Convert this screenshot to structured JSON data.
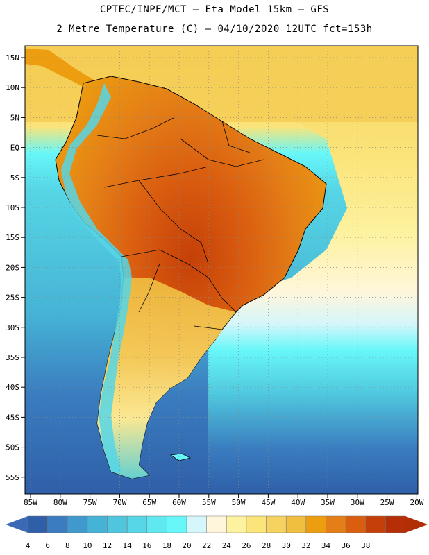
{
  "header": {
    "line1": "CPTEC/INPE/MCT –  Eta Model 15km – GFS",
    "line2": "2 Metre Temperature (C) – 04/10/2020 12UTC fct=153h"
  },
  "latitude_labels": [
    "15N",
    "10N",
    "5N",
    "EQ",
    "5S",
    "10S",
    "15S",
    "20S",
    "25S",
    "30S",
    "35S",
    "40S",
    "45S",
    "50S",
    "55S"
  ],
  "longitude_labels": [
    "85W",
    "80W",
    "75W",
    "70W",
    "65W",
    "60W",
    "55W",
    "50W",
    "45W",
    "40W",
    "35W",
    "30W",
    "25W",
    "20W"
  ],
  "colorbar": {
    "labels": [
      "4",
      "6",
      "8",
      "10",
      "12",
      "14",
      "16",
      "18",
      "20",
      "22",
      "24",
      "26",
      "28",
      "30",
      "32",
      "34",
      "36",
      "38"
    ],
    "colors": [
      "#2f5fa8",
      "#3a7cbf",
      "#3f99cc",
      "#45b3d6",
      "#4fc6dd",
      "#56d6e6",
      "#60e8f0",
      "#67f7f9",
      "#d5f6fa",
      "#fff6dc",
      "#fdf2a0",
      "#fbe47a",
      "#f6d260",
      "#f0bf40",
      "#ec9e10",
      "#e47e16",
      "#da5e10",
      "#c54008",
      "#b62e06"
    ],
    "low_arrow_color": "#3a6ab5",
    "high_arrow_color": "#b12e06"
  },
  "colors": {
    "ocean_cold": "#2f5fa8",
    "ocean_mid": "#4fc6dd",
    "ocean_warm": "#fbe47a",
    "land_hot": "#da5e10",
    "land_warm": "#ec9e10",
    "andes_cold": "#56d6e6"
  },
  "icons": {
    "map": "temperature-map-icon"
  }
}
